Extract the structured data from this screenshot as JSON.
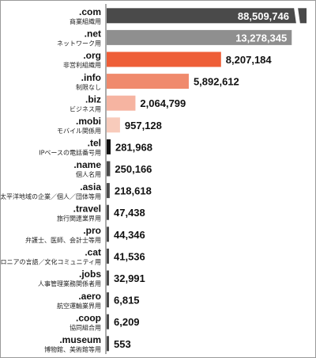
{
  "chart_data": {
    "type": "bar",
    "orientation": "horizontal",
    "categories": [
      ".com",
      ".net",
      ".org",
      ".info",
      ".biz",
      ".mobi",
      ".tel",
      ".name",
      ".asia",
      ".travel",
      ".pro",
      ".cat",
      ".jobs",
      ".aero",
      ".coop",
      ".museum"
    ],
    "subtitles": [
      "商業組織用",
      "ネットワーク用",
      "非営利組織用",
      "制限なし",
      "ビジネス用",
      "モバイル関係用",
      "IPベースの電話番号用",
      "個人名用",
      "アジア太平洋地域の企業／個人／団体等用",
      "旅行関連業界用",
      "弁護士、医師、会計士等用",
      "カタロニアの言語／文化コミュニティ用",
      "人事管理業務関係者用",
      "航空運輸業界用",
      "協同組合用",
      "博物館、美術館等用"
    ],
    "values": [
      88509746,
      13278345,
      8207184,
      5892612,
      2064799,
      957128,
      281968,
      250166,
      218618,
      47438,
      44346,
      41536,
      32991,
      6815,
      6209,
      553
    ],
    "value_labels": [
      "88,509,746",
      "13,278,345",
      "8,207,184",
      "5,892,612",
      "2,064,799",
      "957,128",
      "281,968",
      "250,166",
      "218,618",
      "47,438",
      "44,346",
      "41,536",
      "32,991",
      "6,815",
      "6,209",
      "553"
    ],
    "colors": [
      "#4a4a4a",
      "#8f8f8f",
      "#ee5e37",
      "#f08a6c",
      "#f6b4a1",
      "#f8cbbb",
      "#111111",
      "#4a4a4a",
      "#4a4a4a",
      "#4a4a4a",
      "#4a4a4a",
      "#4a4a4a",
      "#4a4a4a",
      "#4a4a4a",
      "#4a4a4a",
      "#4a4a4a"
    ],
    "axis_break_on_first_bar": true,
    "title": "",
    "xlabel": "",
    "ylabel": ""
  }
}
